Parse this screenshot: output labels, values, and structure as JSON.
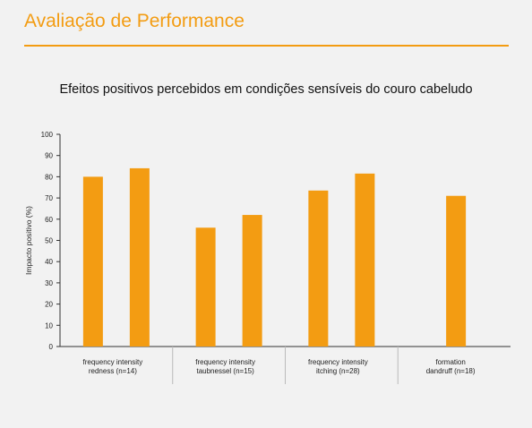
{
  "header": {
    "title": "Avaliação de Performance",
    "accent": "#f39c12"
  },
  "chart_data": {
    "type": "bar",
    "title": "Efeitos positivos percebidos em condições sensíveis do couro cabeludo",
    "ylabel": "Impacto positivo (%)",
    "xlabel": "",
    "ylim": [
      0,
      100
    ],
    "yticks": [
      0,
      10,
      20,
      30,
      40,
      50,
      60,
      70,
      80,
      90,
      100
    ],
    "grid": false,
    "bar_color": "#f39c12",
    "groups": [
      {
        "label_lines": [
          "frequency intensity",
          "redness (n=14)"
        ],
        "values": [
          80,
          84
        ]
      },
      {
        "label_lines": [
          "frequency intensity",
          "taubnessel (n=15)"
        ],
        "values": [
          56,
          62
        ]
      },
      {
        "label_lines": [
          "frequency intensity",
          "itching (n=28)"
        ],
        "values": [
          73.5,
          81.5
        ]
      },
      {
        "label_lines": [
          "formation",
          "dandruff (n=18)"
        ],
        "values": [
          71
        ]
      }
    ]
  }
}
